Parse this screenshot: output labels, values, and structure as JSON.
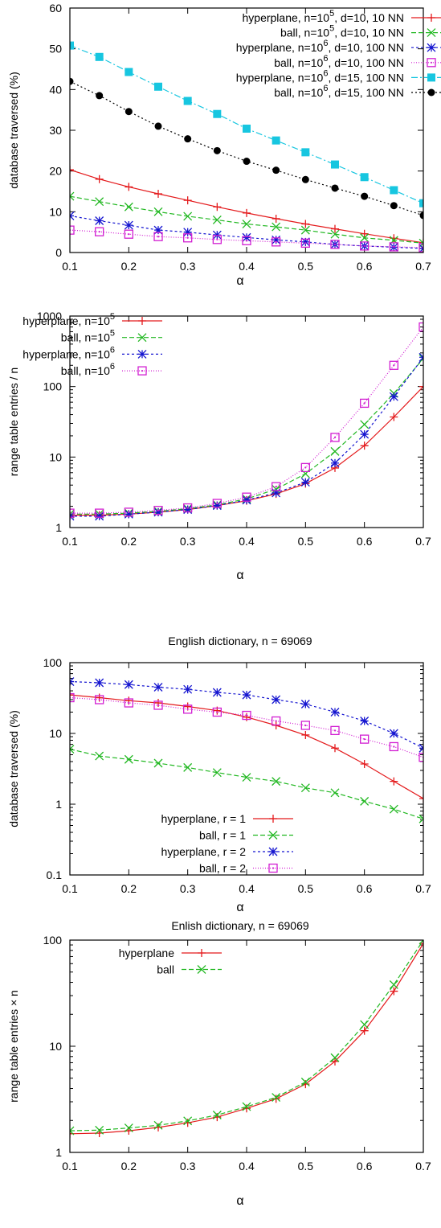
{
  "colors": {
    "red": "#e41a1c",
    "green": "#22b822",
    "blue": "#1515d0",
    "magenta": "#d21fd2",
    "cyan": "#17c6e0",
    "black": "#000000",
    "axis": "#000000",
    "background": "#ffffff"
  },
  "chart_data": [
    {
      "type": "line",
      "title": "",
      "xlabel": "α",
      "ylabel": "database traversed (%)",
      "xscale": "linear",
      "yscale": "linear",
      "xlim": [
        0.1,
        0.7
      ],
      "ylim": [
        0,
        60
      ],
      "xticks": [
        "0.1",
        "0.2",
        "0.3",
        "0.4",
        "0.5",
        "0.6",
        "0.7"
      ],
      "yticks": [
        "0",
        "10",
        "20",
        "30",
        "40",
        "50",
        "60"
      ],
      "grid": false,
      "legend_position": "top-right",
      "x": [
        0.1,
        0.15,
        0.2,
        0.25,
        0.3,
        0.35,
        0.4,
        0.45,
        0.5,
        0.55,
        0.6,
        0.65,
        0.7
      ],
      "series": [
        {
          "name": {
            "base": "hyperplane, n=10",
            "sup": "5",
            "rest": ", d=10, 10 NN"
          },
          "color": "#e41a1c",
          "marker": "plus",
          "dash": "",
          "values": [
            20.3,
            18.0,
            16.1,
            14.4,
            12.8,
            11.2,
            9.7,
            8.3,
            7.0,
            5.8,
            4.6,
            3.5,
            2.4
          ]
        },
        {
          "name": {
            "base": "ball, n=10",
            "sup": "5",
            "rest": ", d=10, 10 NN"
          },
          "color": "#22b822",
          "marker": "cross",
          "dash": "6,3",
          "values": [
            13.8,
            12.5,
            11.2,
            10.0,
            8.9,
            8.0,
            7.0,
            6.3,
            5.5,
            4.5,
            3.6,
            3.0,
            2.3
          ]
        },
        {
          "name": {
            "base": "hyperplane, n=10",
            "sup": "6",
            "rest": ", d=10, 100 NN"
          },
          "color": "#1515d0",
          "marker": "star",
          "dash": "3,3",
          "values": [
            9.0,
            7.8,
            6.7,
            5.5,
            5.0,
            4.3,
            3.7,
            3.1,
            2.6,
            2.0,
            1.6,
            1.3,
            1.0
          ]
        },
        {
          "name": {
            "base": "ball, n=10",
            "sup": "6",
            "rest": ", d=10, 100 NN"
          },
          "color": "#d21fd2",
          "marker": "box",
          "dash": "1,2",
          "values": [
            5.5,
            5.1,
            4.5,
            3.9,
            3.6,
            3.2,
            2.9,
            2.6,
            2.3,
            2.0,
            1.6,
            1.4,
            1.2
          ]
        },
        {
          "name": {
            "base": "hyperplane, n=10",
            "sup": "6",
            "rest": ", d=15, 100 NN"
          },
          "color": "#17c6e0",
          "marker": "fsquare",
          "dash": "8,3,2,3",
          "values": [
            50.8,
            48.0,
            44.3,
            40.7,
            37.2,
            34.0,
            30.4,
            27.5,
            24.6,
            21.6,
            18.5,
            15.3,
            12.1
          ]
        },
        {
          "name": {
            "base": "ball, n=10",
            "sup": "6",
            "rest": ", d=15, 100 NN"
          },
          "color": "#000000",
          "marker": "fcircle",
          "dash": "2,3",
          "values": [
            42.0,
            38.5,
            34.6,
            31.0,
            27.9,
            25.0,
            22.4,
            20.2,
            17.9,
            15.8,
            13.8,
            11.5,
            9.1
          ]
        }
      ]
    },
    {
      "type": "line",
      "title": "",
      "xlabel": "α",
      "ylabel": "range table entries / n",
      "xscale": "linear",
      "yscale": "log",
      "xlim": [
        0.1,
        0.7
      ],
      "ylim": [
        1,
        1000
      ],
      "xticks": [
        "0.1",
        "0.2",
        "0.3",
        "0.4",
        "0.5",
        "0.6",
        "0.7"
      ],
      "yticks": [
        "1",
        "10",
        "100",
        "1000"
      ],
      "grid": false,
      "legend_position": "top-left",
      "x": [
        0.1,
        0.15,
        0.2,
        0.25,
        0.3,
        0.35,
        0.4,
        0.45,
        0.5,
        0.55,
        0.6,
        0.65,
        0.7
      ],
      "series": [
        {
          "name": {
            "base": "hyperplane, n=10",
            "sup": "5",
            "rest": ""
          },
          "color": "#e41a1c",
          "marker": "plus",
          "dash": "",
          "values": [
            1.5,
            1.5,
            1.55,
            1.65,
            1.8,
            2.05,
            2.4,
            3.0,
            4.2,
            7.0,
            14.5,
            37,
            100
          ]
        },
        {
          "name": {
            "base": "ball, n=10",
            "sup": "5",
            "rest": ""
          },
          "color": "#22b822",
          "marker": "cross",
          "dash": "6,3",
          "values": [
            1.55,
            1.55,
            1.6,
            1.7,
            1.85,
            2.1,
            2.55,
            3.5,
            5.8,
            12,
            29,
            80,
            250
          ]
        },
        {
          "name": {
            "base": "hyperplane, n=10",
            "sup": "6",
            "rest": ""
          },
          "color": "#1515d0",
          "marker": "star",
          "dash": "3,3",
          "values": [
            1.45,
            1.45,
            1.55,
            1.65,
            1.8,
            2.05,
            2.45,
            3.1,
            4.4,
            8.2,
            21,
            72,
            260
          ]
        },
        {
          "name": {
            "base": "ball, n=10",
            "sup": "6",
            "rest": ""
          },
          "color": "#d21fd2",
          "marker": "box",
          "dash": "1,2",
          "values": [
            1.6,
            1.6,
            1.65,
            1.75,
            1.9,
            2.2,
            2.7,
            3.8,
            7.1,
            19,
            58,
            200,
            700
          ]
        }
      ]
    },
    {
      "type": "line",
      "title": "English dictionary, n = 69069",
      "xlabel": "α",
      "ylabel": "database traversed (%)",
      "xscale": "linear",
      "yscale": "log",
      "xlim": [
        0.1,
        0.7
      ],
      "ylim": [
        0.1,
        100
      ],
      "xticks": [
        "0.1",
        "0.2",
        "0.3",
        "0.4",
        "0.5",
        "0.6",
        "0.7"
      ],
      "yticks": [
        "0.1",
        "1",
        "10",
        "100"
      ],
      "grid": false,
      "legend_position": "bottom-left",
      "x": [
        0.1,
        0.15,
        0.2,
        0.25,
        0.3,
        0.35,
        0.4,
        0.45,
        0.5,
        0.55,
        0.6,
        0.65,
        0.7
      ],
      "series": [
        {
          "name": {
            "base": "hyperplane, r = 1",
            "sup": "",
            "rest": ""
          },
          "color": "#e41a1c",
          "marker": "plus",
          "dash": "",
          "values": [
            35,
            32,
            29,
            27,
            24,
            21,
            17,
            13,
            9.5,
            6.2,
            3.7,
            2.1,
            1.2
          ]
        },
        {
          "name": {
            "base": "ball, r = 1",
            "sup": "",
            "rest": ""
          },
          "color": "#22b822",
          "marker": "cross",
          "dash": "6,3",
          "values": [
            6.0,
            4.8,
            4.3,
            3.8,
            3.3,
            2.8,
            2.4,
            2.1,
            1.7,
            1.45,
            1.1,
            0.85,
            0.62
          ]
        },
        {
          "name": {
            "base": "hyperplane, r = 2",
            "sup": "",
            "rest": ""
          },
          "color": "#1515d0",
          "marker": "star",
          "dash": "3,3",
          "values": [
            54,
            52,
            49,
            45,
            42,
            38,
            35,
            30,
            26,
            20,
            15,
            10,
            6.2
          ]
        },
        {
          "name": {
            "base": "ball, r = 2",
            "sup": "",
            "rest": ""
          },
          "color": "#d21fd2",
          "marker": "box",
          "dash": "1,2",
          "values": [
            32,
            30,
            27,
            25,
            22,
            20,
            18,
            15,
            13,
            11,
            8.3,
            6.5,
            4.6
          ]
        }
      ]
    },
    {
      "type": "line",
      "title": "Enlish dictionary, n = 69069",
      "xlabel": "α",
      "ylabel": "range table entries × n",
      "xscale": "linear",
      "yscale": "log",
      "xlim": [
        0.1,
        0.7
      ],
      "ylim": [
        1,
        100
      ],
      "xticks": [
        "0.1",
        "0.2",
        "0.3",
        "0.4",
        "0.5",
        "0.6",
        "0.7"
      ],
      "yticks": [
        "1",
        "10",
        "100"
      ],
      "grid": false,
      "legend_position": "top-left",
      "x": [
        0.1,
        0.15,
        0.2,
        0.25,
        0.3,
        0.35,
        0.4,
        0.45,
        0.5,
        0.55,
        0.6,
        0.65,
        0.7
      ],
      "series": [
        {
          "name": {
            "base": "hyperplane",
            "sup": "",
            "rest": ""
          },
          "color": "#e41a1c",
          "marker": "plus",
          "dash": "",
          "values": [
            1.5,
            1.52,
            1.6,
            1.72,
            1.9,
            2.15,
            2.6,
            3.2,
            4.4,
            7.2,
            14,
            33,
            93
          ]
        },
        {
          "name": {
            "base": "ball",
            "sup": "",
            "rest": ""
          },
          "color": "#22b822",
          "marker": "cross",
          "dash": "6,3",
          "values": [
            1.6,
            1.62,
            1.7,
            1.8,
            1.98,
            2.25,
            2.7,
            3.3,
            4.6,
            7.8,
            16,
            38,
            100
          ]
        }
      ]
    }
  ]
}
